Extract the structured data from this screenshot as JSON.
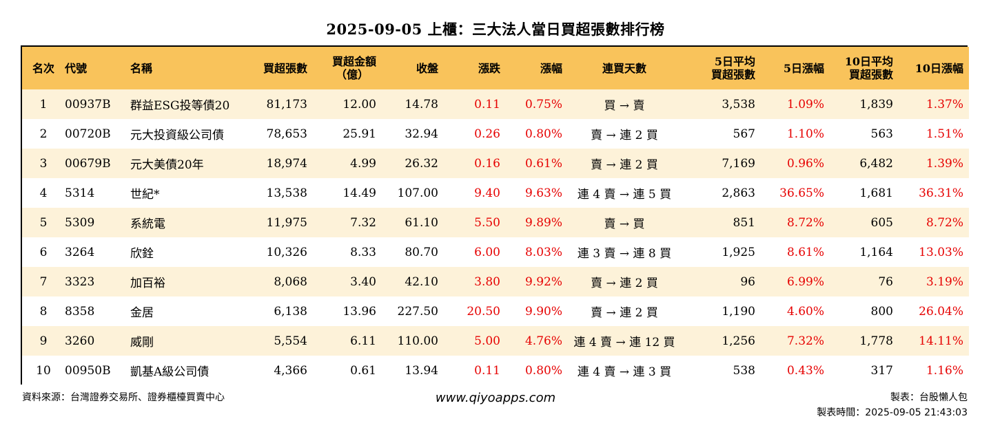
{
  "title": "2025-09-05 上櫃：三大法人當日買超張數排行榜",
  "headers": {
    "rank": "名次",
    "code": "代號",
    "name": "名稱",
    "buy_shares": "買超張數",
    "buy_amount_l1": "買超金額",
    "buy_amount_l2": "（億）",
    "close": "收盤",
    "change": "漲跌",
    "pct": "漲幅",
    "streak": "連買天數",
    "avg5_l1": "5日平均",
    "avg5_l2": "買超張數",
    "pct5": "5日漲幅",
    "avg10_l1": "10日平均",
    "avg10_l2": "買超張數",
    "pct10": "10日漲幅"
  },
  "rows": [
    {
      "rank": "1",
      "code": "00937B",
      "name": "群益ESG投等債20",
      "buy_shares": "81,173",
      "buy_amount": "12.00",
      "close": "14.78",
      "change": "0.11",
      "pct": "0.75%",
      "streak": "買 → 賣",
      "avg5": "3,538",
      "pct5": "1.09%",
      "avg10": "1,839",
      "pct10": "1.37%"
    },
    {
      "rank": "2",
      "code": "00720B",
      "name": "元大投資級公司債",
      "buy_shares": "78,653",
      "buy_amount": "25.91",
      "close": "32.94",
      "change": "0.26",
      "pct": "0.80%",
      "streak": "賣 → 連 2 買",
      "avg5": "567",
      "pct5": "1.10%",
      "avg10": "563",
      "pct10": "1.51%"
    },
    {
      "rank": "3",
      "code": "00679B",
      "name": "元大美債20年",
      "buy_shares": "18,974",
      "buy_amount": "4.99",
      "close": "26.32",
      "change": "0.16",
      "pct": "0.61%",
      "streak": "賣 → 連 2 買",
      "avg5": "7,169",
      "pct5": "0.96%",
      "avg10": "6,482",
      "pct10": "1.39%"
    },
    {
      "rank": "4",
      "code": "5314",
      "name": "世紀*",
      "buy_shares": "13,538",
      "buy_amount": "14.49",
      "close": "107.00",
      "change": "9.40",
      "pct": "9.63%",
      "streak": "連 4 賣 → 連 5 買",
      "avg5": "2,863",
      "pct5": "36.65%",
      "avg10": "1,681",
      "pct10": "36.31%"
    },
    {
      "rank": "5",
      "code": "5309",
      "name": "系統電",
      "buy_shares": "11,975",
      "buy_amount": "7.32",
      "close": "61.10",
      "change": "5.50",
      "pct": "9.89%",
      "streak": "賣 → 買",
      "avg5": "851",
      "pct5": "8.72%",
      "avg10": "605",
      "pct10": "8.72%"
    },
    {
      "rank": "6",
      "code": "3264",
      "name": "欣銓",
      "buy_shares": "10,326",
      "buy_amount": "8.33",
      "close": "80.70",
      "change": "6.00",
      "pct": "8.03%",
      "streak": "連 3 賣 → 連 8 買",
      "avg5": "1,925",
      "pct5": "8.61%",
      "avg10": "1,164",
      "pct10": "13.03%"
    },
    {
      "rank": "7",
      "code": "3323",
      "name": "加百裕",
      "buy_shares": "8,068",
      "buy_amount": "3.40",
      "close": "42.10",
      "change": "3.80",
      "pct": "9.92%",
      "streak": "賣 → 連 2 買",
      "avg5": "96",
      "pct5": "6.99%",
      "avg10": "76",
      "pct10": "3.19%"
    },
    {
      "rank": "8",
      "code": "8358",
      "name": "金居",
      "buy_shares": "6,138",
      "buy_amount": "13.96",
      "close": "227.50",
      "change": "20.50",
      "pct": "9.90%",
      "streak": "賣 → 連 2 買",
      "avg5": "1,190",
      "pct5": "4.60%",
      "avg10": "800",
      "pct10": "26.04%"
    },
    {
      "rank": "9",
      "code": "3260",
      "name": "威剛",
      "buy_shares": "5,554",
      "buy_amount": "6.11",
      "close": "110.00",
      "change": "5.00",
      "pct": "4.76%",
      "streak": "連 4 賣 → 連 12 買",
      "avg5": "1,256",
      "pct5": "7.32%",
      "avg10": "1,778",
      "pct10": "14.11%"
    },
    {
      "rank": "10",
      "code": "00950B",
      "name": "凱基A級公司債",
      "buy_shares": "4,366",
      "buy_amount": "0.61",
      "close": "13.94",
      "change": "0.11",
      "pct": "0.80%",
      "streak": "連 4 賣 → 連 3 買",
      "avg5": "538",
      "pct5": "0.43%",
      "avg10": "317",
      "pct10": "1.16%"
    }
  ],
  "footer": {
    "source": "資料來源：台灣證券交易所、證券櫃檯買賣中心",
    "website": "www.qiyoapps.com",
    "maker": "製表：台股懶人包",
    "time": "製表時間：2025-09-05 21:43:03"
  },
  "colors": {
    "header_bg": "#f9c35b",
    "odd_row_bg": "#fdf2d9",
    "positive": "#e60000"
  }
}
